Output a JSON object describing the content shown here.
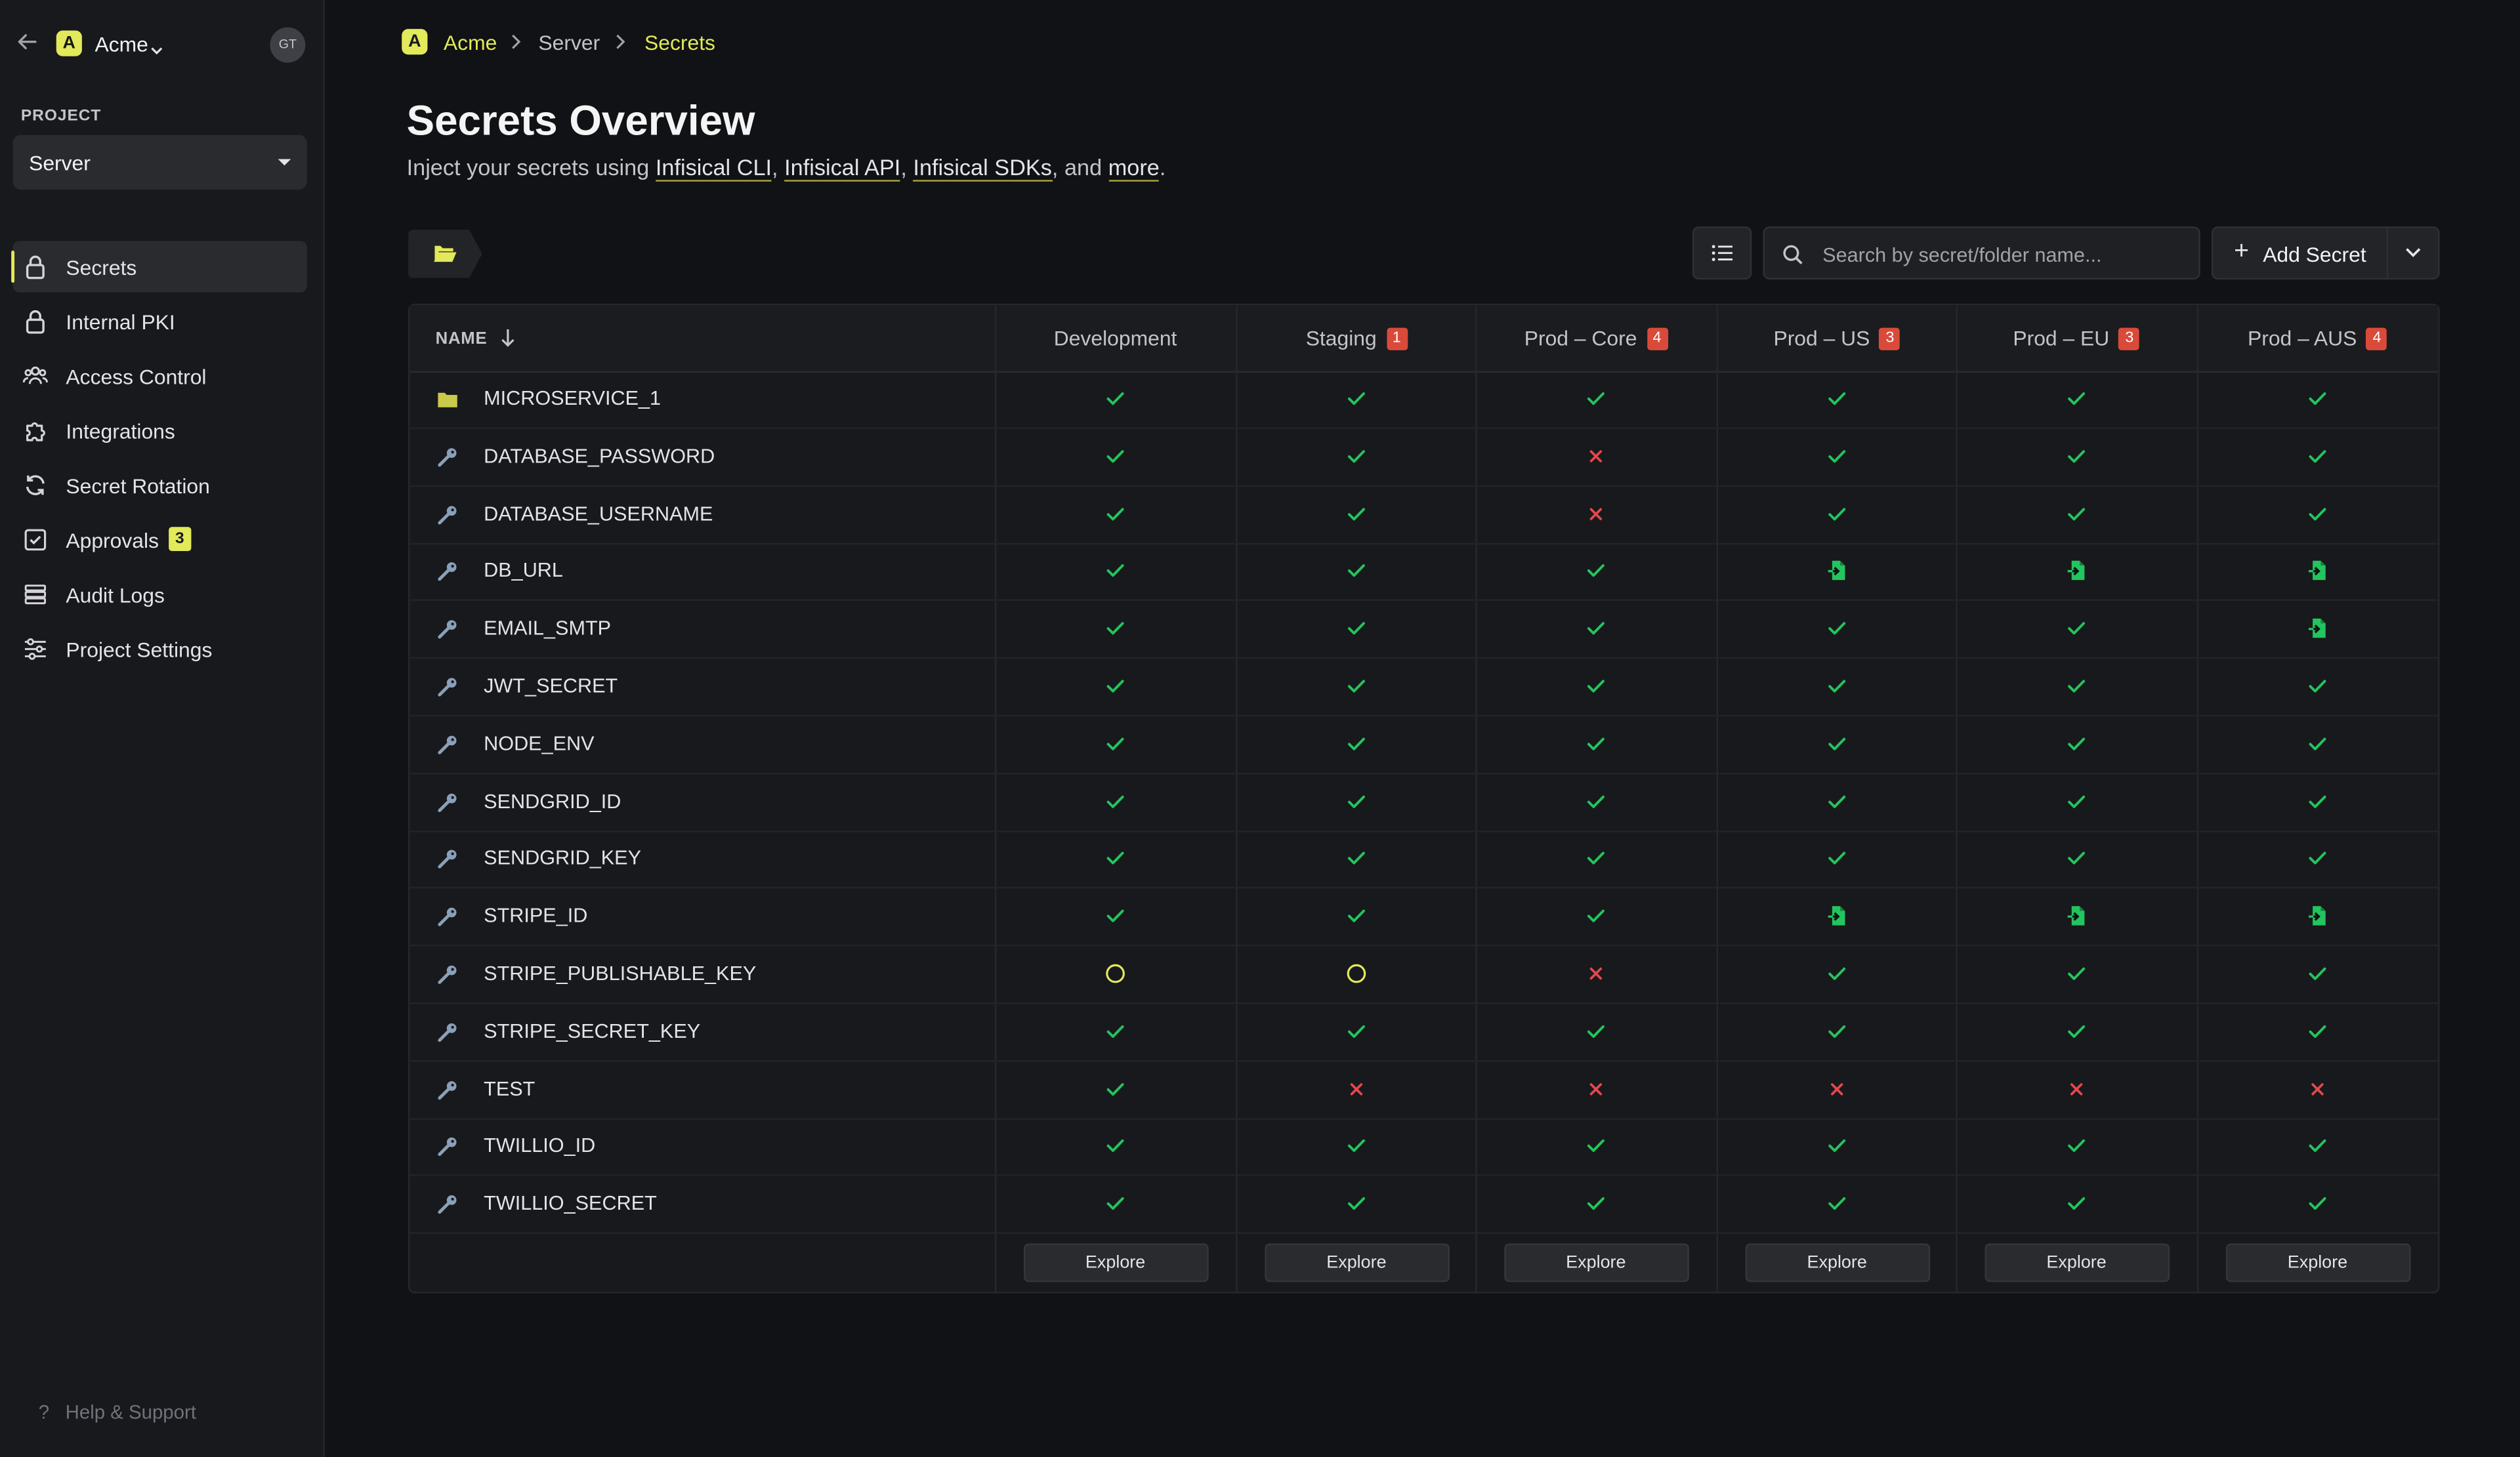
{
  "sidebar": {
    "org_logo_letter": "A",
    "org_name": "Acme",
    "avatar_initials": "GT",
    "project_label": "PROJECT",
    "project_name": "Server",
    "nav": [
      {
        "label": "Secrets",
        "icon": "lock-icon",
        "active": true
      },
      {
        "label": "Internal PKI",
        "icon": "lock-icon"
      },
      {
        "label": "Access Control",
        "icon": "users-icon"
      },
      {
        "label": "Integrations",
        "icon": "puzzle-icon"
      },
      {
        "label": "Secret Rotation",
        "icon": "rotate-icon"
      },
      {
        "label": "Approvals",
        "icon": "checklist-icon",
        "badge": "3"
      },
      {
        "label": "Audit Logs",
        "icon": "list-icon"
      },
      {
        "label": "Project Settings",
        "icon": "sliders-icon"
      }
    ],
    "help_label": "Help & Support"
  },
  "breadcrumb": {
    "logo_letter": "A",
    "org": "Acme",
    "project": "Server",
    "page": "Secrets"
  },
  "header": {
    "title": "Secrets Overview",
    "subtitle_prefix": "Inject your secrets using ",
    "link_cli": "Infisical CLI",
    "sep1": ", ",
    "link_api": "Infisical API",
    "sep2": ", ",
    "link_sdks": "Infisical SDKs",
    "sep3": ", and ",
    "link_more": "more",
    "end": "."
  },
  "toolbar": {
    "search_placeholder": "Search by secret/folder name...",
    "add_secret_label": "Add Secret"
  },
  "table": {
    "name_header": "NAME",
    "environments": [
      {
        "name": "Development",
        "badge": null
      },
      {
        "name": "Staging",
        "badge": "1"
      },
      {
        "name": "Prod – Core",
        "badge": "4"
      },
      {
        "name": "Prod – US",
        "badge": "3"
      },
      {
        "name": "Prod – EU",
        "badge": "3"
      },
      {
        "name": "Prod – AUS",
        "badge": "4"
      }
    ],
    "rows": [
      {
        "name": "MICROSERVICE_1",
        "type": "folder",
        "status": [
          "check",
          "check",
          "check",
          "check",
          "check",
          "check"
        ]
      },
      {
        "name": "DATABASE_PASSWORD",
        "type": "secret",
        "status": [
          "check",
          "check",
          "x",
          "check",
          "check",
          "check"
        ]
      },
      {
        "name": "DATABASE_USERNAME",
        "type": "secret",
        "status": [
          "check",
          "check",
          "x",
          "check",
          "check",
          "check"
        ]
      },
      {
        "name": "DB_URL",
        "type": "secret",
        "status": [
          "check",
          "check",
          "check",
          "import",
          "import",
          "import"
        ]
      },
      {
        "name": "EMAIL_SMTP",
        "type": "secret",
        "status": [
          "check",
          "check",
          "check",
          "check",
          "check",
          "import"
        ]
      },
      {
        "name": "JWT_SECRET",
        "type": "secret",
        "status": [
          "check",
          "check",
          "check",
          "check",
          "check",
          "check"
        ]
      },
      {
        "name": "NODE_ENV",
        "type": "secret",
        "status": [
          "check",
          "check",
          "check",
          "check",
          "check",
          "check"
        ]
      },
      {
        "name": "SENDGRID_ID",
        "type": "secret",
        "status": [
          "check",
          "check",
          "check",
          "check",
          "check",
          "check"
        ]
      },
      {
        "name": "SENDGRID_KEY",
        "type": "secret",
        "status": [
          "check",
          "check",
          "check",
          "check",
          "check",
          "check"
        ]
      },
      {
        "name": "STRIPE_ID",
        "type": "secret",
        "status": [
          "check",
          "check",
          "check",
          "import",
          "import",
          "import"
        ]
      },
      {
        "name": "STRIPE_PUBLISHABLE_KEY",
        "type": "secret",
        "status": [
          "empty",
          "empty",
          "x",
          "check",
          "check",
          "check"
        ]
      },
      {
        "name": "STRIPE_SECRET_KEY",
        "type": "secret",
        "status": [
          "check",
          "check",
          "check",
          "check",
          "check",
          "check"
        ]
      },
      {
        "name": "TEST",
        "type": "secret",
        "status": [
          "check",
          "x",
          "x",
          "x",
          "x",
          "x"
        ]
      },
      {
        "name": "TWILLIO_ID",
        "type": "secret",
        "status": [
          "check",
          "check",
          "check",
          "check",
          "check",
          "check"
        ]
      },
      {
        "name": "TWILLIO_SECRET",
        "type": "secret",
        "status": [
          "check",
          "check",
          "check",
          "check",
          "check",
          "check"
        ]
      }
    ],
    "explore_label": "Explore"
  },
  "colors": {
    "accent": "#e2e95a",
    "check": "#22c55e",
    "x": "#e5484d",
    "empty": "#e2e95a",
    "badge": "#d94a3a"
  }
}
